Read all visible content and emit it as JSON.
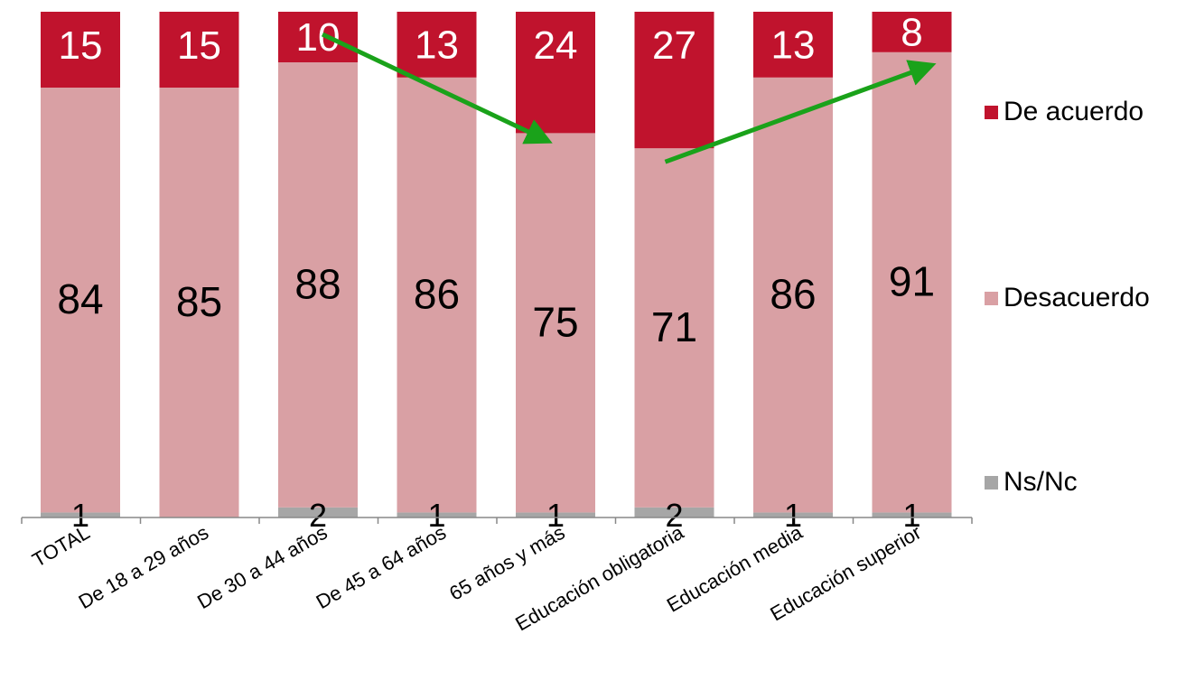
{
  "chart_data": {
    "type": "bar",
    "stacked": true,
    "categories": [
      "TOTAL",
      "De 18 a 29 años",
      "De 30 a 44 años",
      "De 45 a 64 años",
      "65 años y más",
      "Educación obligatoria",
      "Educación media",
      "Educación superior"
    ],
    "series": [
      {
        "name": "Ns/Nc",
        "color": "#a6a6a6",
        "values": [
          1,
          0,
          2,
          1,
          1,
          2,
          1,
          1
        ],
        "labels": [
          "1",
          "",
          "2",
          "1",
          "1",
          "2",
          "1",
          "1"
        ]
      },
      {
        "name": "Desacuerdo",
        "color": "#d9a0a4",
        "values": [
          84,
          85,
          88,
          86,
          75,
          71,
          86,
          91
        ],
        "labels": [
          "84",
          "85",
          "88",
          "86",
          "75",
          "71",
          "86",
          "91"
        ]
      },
      {
        "name": "De acuerdo",
        "color": "#c0132d",
        "values": [
          15,
          15,
          10,
          13,
          24,
          27,
          13,
          8
        ],
        "labels": [
          "15",
          "15",
          "10",
          "13",
          "24",
          "27",
          "13",
          "8"
        ]
      }
    ],
    "ylim": [
      0,
      100
    ],
    "grid": false,
    "legend_position": "right",
    "annotations": [
      {
        "type": "arrow",
        "color": "#1aa21a",
        "from_category": "De 30 a 44 años",
        "to_category": "65 años y más"
      },
      {
        "type": "arrow",
        "color": "#1aa21a",
        "from_category": "Educación obligatoria",
        "to_category": "Educación superior"
      }
    ]
  },
  "legend": [
    {
      "name": "De acuerdo",
      "color": "#c0132d"
    },
    {
      "name": "Desacuerdo",
      "color": "#d9a0a4"
    },
    {
      "name": "Ns/Nc",
      "color": "#a6a6a6"
    }
  ]
}
